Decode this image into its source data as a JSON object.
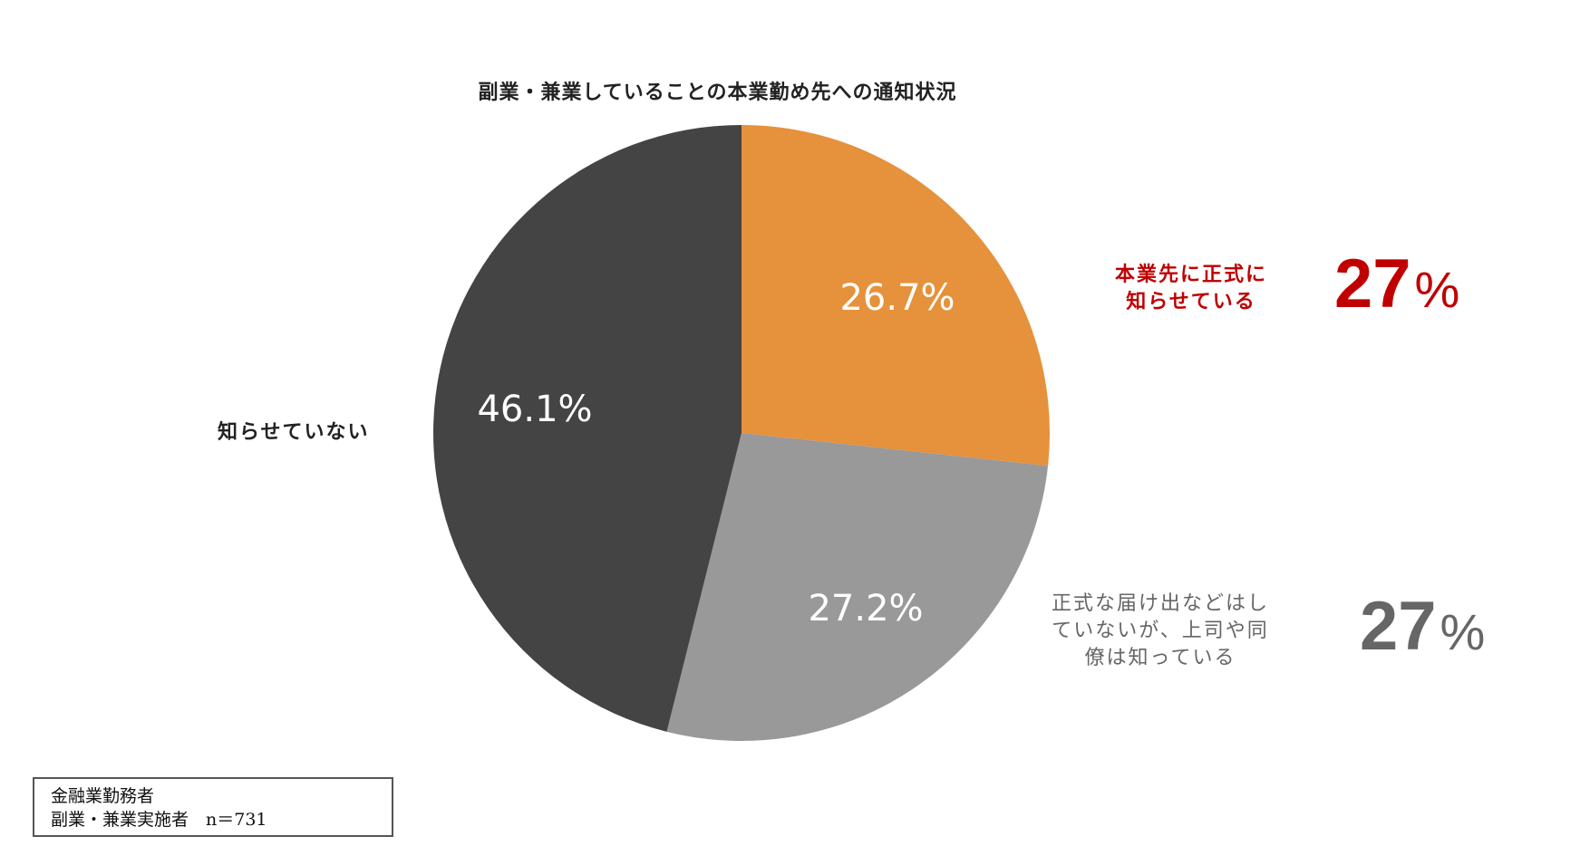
{
  "title": "副業・兼業していることの本業勤め先への通知状況",
  "slices": [
    {
      "name": "本業先に正式に知らせている",
      "value": 26.7,
      "label": "26.7%",
      "color": "#e6913b"
    },
    {
      "name": "正式な届け出などはしていないが、上司や同僚は知っている",
      "value": 27.2,
      "label": "27.2%",
      "color": "#999999"
    },
    {
      "name": "知らせていない",
      "value": 46.1,
      "label": "46.1%",
      "color": "#444444"
    }
  ],
  "side_labels": {
    "not_informed": "知らせていない",
    "formal_line1": "本業先に正式に",
    "formal_line2": "知らせている",
    "informal_line1": "正式な届け出などはし",
    "informal_line2": "ていないが、上司や同",
    "informal_line3": "僚は知っている"
  },
  "callouts": {
    "formal": {
      "number": "27",
      "sign": "%",
      "color": "#c00000"
    },
    "informal": {
      "number": "27",
      "sign": "%",
      "color": "#666666"
    }
  },
  "note": {
    "line1": "金融業勤務者",
    "line2": "副業・兼業実施者　n＝731"
  },
  "chart_data": {
    "type": "pie",
    "title": "副業・兼業していることの本業勤め先への通知状況",
    "categories": [
      "本業先に正式に知らせている",
      "正式な届け出などはしていないが、上司や同僚は知っている",
      "知らせていない"
    ],
    "values": [
      26.7,
      27.2,
      46.1
    ],
    "colors": [
      "#e6913b",
      "#999999",
      "#444444"
    ],
    "start_angle": "12 o'clock, clockwise",
    "annotations": [
      "27%",
      "27%"
    ],
    "sample": "金融業勤務者 副業・兼業実施者 n=731"
  }
}
